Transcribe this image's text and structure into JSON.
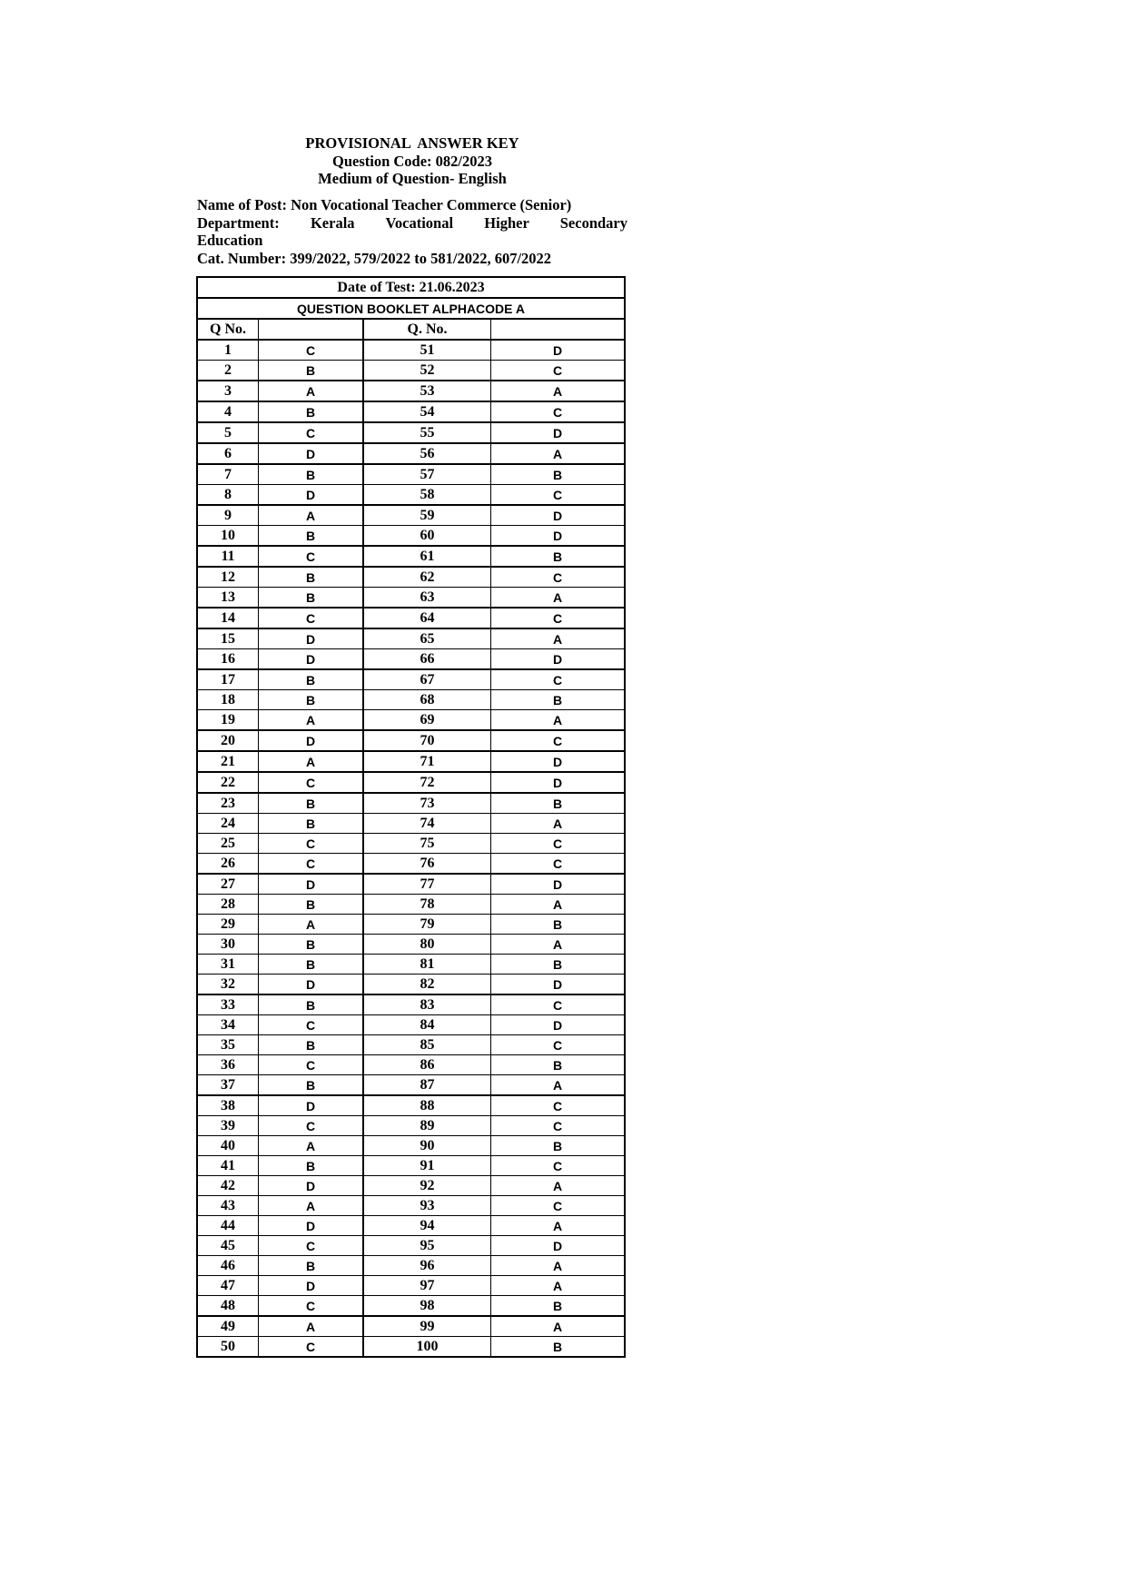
{
  "header": {
    "title": "PROVISIONAL  ANSWER KEY",
    "question_code": "Question Code: 082/2023",
    "medium": "Medium of Question- English"
  },
  "info": {
    "post": "Name of Post: Non Vocational Teacher Commerce (Senior)",
    "department_line1": "Department:  Kerala  Vocational  Higher  Secondary",
    "department_line2": "Education",
    "cat_number": "Cat. Number: 399/2022, 579/2022 to 581/2022, 607/2022"
  },
  "table": {
    "date_of_test": "Date of Test: 21.06.2023",
    "booklet": "QUESTION BOOKLET ALPHACODE A",
    "col1_header": "Q No.",
    "col3_header": "Q. No.",
    "answers_1_50": [
      "C",
      "B",
      "A",
      "B",
      "C",
      "D",
      "B",
      "D",
      "A",
      "B",
      "C",
      "B",
      "B",
      "C",
      "D",
      "D",
      "B",
      "B",
      "A",
      "D",
      "A",
      "C",
      "B",
      "B",
      "C",
      "C",
      "D",
      "B",
      "A",
      "B",
      "B",
      "D",
      "B",
      "C",
      "B",
      "C",
      "B",
      "D",
      "C",
      "A",
      "B",
      "D",
      "A",
      "D",
      "C",
      "B",
      "D",
      "C",
      "A",
      "C"
    ],
    "answers_51_100": [
      "D",
      "C",
      "A",
      "C",
      "D",
      "A",
      "B",
      "C",
      "D",
      "D",
      "B",
      "C",
      "A",
      "C",
      "A",
      "D",
      "C",
      "B",
      "A",
      "C",
      "D",
      "D",
      "B",
      "A",
      "C",
      "C",
      "D",
      "A",
      "B",
      "A",
      "B",
      "D",
      "C",
      "D",
      "C",
      "B",
      "A",
      "C",
      "C",
      "B",
      "C",
      "A",
      "C",
      "A",
      "D",
      "A",
      "A",
      "B",
      "A",
      "B"
    ]
  }
}
